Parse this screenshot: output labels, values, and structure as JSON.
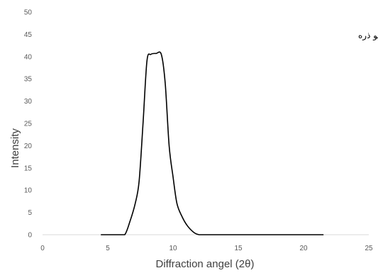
{
  "chart_data": {
    "type": "line",
    "title": "",
    "xlabel": "Diffraction angel (2θ)",
    "ylabel": "Intensity",
    "xlim": [
      0,
      25
    ],
    "ylim": [
      0,
      50
    ],
    "xticks": [
      0,
      5,
      10,
      15,
      20,
      25
    ],
    "yticks": [
      0,
      5,
      10,
      15,
      20,
      25,
      30,
      35,
      40,
      45,
      50
    ],
    "grid": false,
    "legend_position": "top-right",
    "series": [
      {
        "name": "اندازه نانو ذره",
        "color": "#000000",
        "x": [
          4.5,
          5.8,
          6.3,
          6.7,
          7.1,
          7.4,
          7.7,
          8.0,
          8.3,
          8.7,
          9.1,
          9.4,
          9.7,
          10.0,
          10.3,
          10.7,
          11.1,
          11.6,
          12.0,
          12.5,
          13.0,
          14.0,
          15.0,
          17.0,
          19.0,
          21.5
        ],
        "y": [
          0,
          0,
          0,
          3,
          7,
          12,
          25,
          39,
          40.5,
          40.7,
          40.5,
          34,
          20,
          13,
          7,
          4,
          2,
          0.5,
          0,
          0,
          0,
          0,
          0,
          0,
          0,
          0
        ]
      }
    ]
  }
}
